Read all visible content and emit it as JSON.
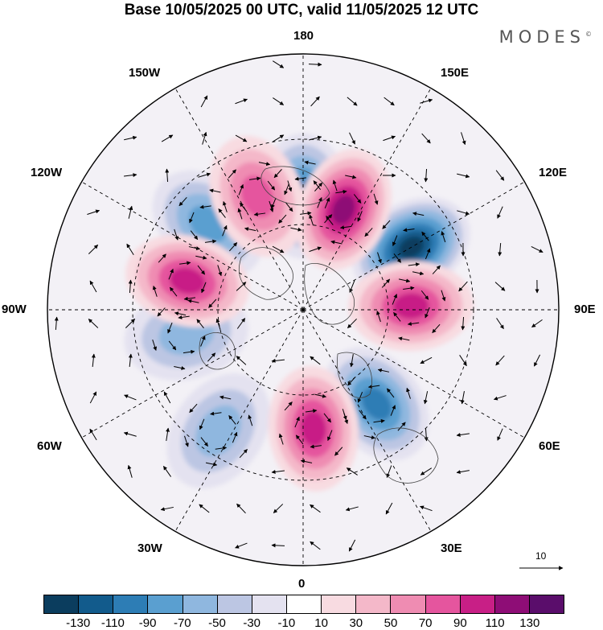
{
  "title": "Base 10/05/2025 00 UTC, valid 11/05/2025 12 UTC",
  "logo": "MODES",
  "logo_mark": "©",
  "longitude_labels": {
    "lon_180": "180",
    "lon_150e": "150E",
    "lon_120e": "120E",
    "lon_90e": "90E",
    "lon_60e": "60E",
    "lon_30e": "30E",
    "lon_0": "0",
    "lon_30w": "30W",
    "lon_60w": "60W",
    "lon_90w": "90W",
    "lon_120w": "120W",
    "lon_150w": "150W"
  },
  "colorbar": {
    "labels": [
      "-130",
      "-110",
      "-90",
      "-70",
      "-50",
      "-30",
      "-10",
      "10",
      "30",
      "50",
      "70",
      "90",
      "110",
      "130"
    ],
    "colors": [
      "#0b3d5e",
      "#125b8c",
      "#2d7db5",
      "#5a9fd0",
      "#8fb7df",
      "#bcc6e3",
      "#e4e2f0",
      "#ffffff",
      "#f8dbe1",
      "#f4b8c9",
      "#ef8cb2",
      "#e5559e",
      "#c81f86",
      "#8e0d76",
      "#5a0d6b"
    ]
  },
  "vector_reference": {
    "label": "10"
  },
  "features": {
    "positive": [
      {
        "name": "anomaly-max-150e",
        "lon": 158,
        "lat": 52,
        "level": 110
      },
      {
        "name": "anomaly-max-90e",
        "lon": 92,
        "lat": 52,
        "level": 90
      },
      {
        "name": "anomaly-max-0",
        "lon": 5,
        "lat": 48,
        "level": 90
      },
      {
        "name": "anomaly-max-105w",
        "lon": -104,
        "lat": 48,
        "level": 90
      },
      {
        "name": "anomaly-max-160w",
        "lon": -158,
        "lat": 47,
        "level": 70
      }
    ],
    "negative": [
      {
        "name": "anomaly-min-180",
        "lon": 180,
        "lat": 50,
        "level": -90
      },
      {
        "name": "anomaly-min-120e",
        "lon": 120,
        "lat": 46,
        "level": -130
      },
      {
        "name": "anomaly-min-35e",
        "lon": 38,
        "lat": 48,
        "level": -90
      },
      {
        "name": "anomaly-min-130w",
        "lon": -132,
        "lat": 45,
        "level": -70
      },
      {
        "name": "anomaly-min-80w",
        "lon": -78,
        "lat": 48,
        "level": -50
      },
      {
        "name": "anomaly-min-30w",
        "lon": -35,
        "lat": 38,
        "level": -50
      }
    ]
  }
}
